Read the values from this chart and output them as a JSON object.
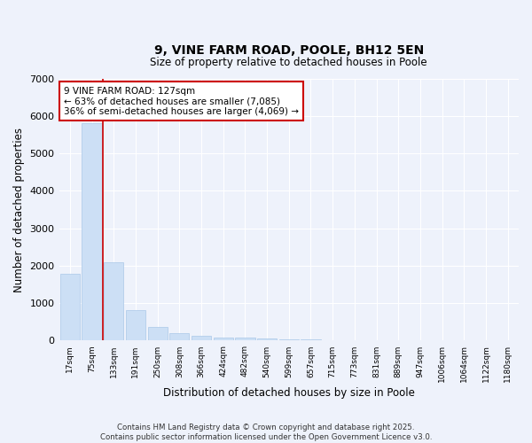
{
  "title": "9, VINE FARM ROAD, POOLE, BH12 5EN",
  "subtitle": "Size of property relative to detached houses in Poole",
  "xlabel": "Distribution of detached houses by size in Poole",
  "ylabel": "Number of detached properties",
  "bar_color": "#ccdff5",
  "bar_edge_color": "#aac8e8",
  "background_color": "#eef2fb",
  "vline_color": "#cc0000",
  "vline_x_index": 2,
  "annotation_text": "9 VINE FARM ROAD: 127sqm\n← 63% of detached houses are smaller (7,085)\n36% of semi-detached houses are larger (4,069) →",
  "annotation_box_edgecolor": "#cc0000",
  "categories": [
    "17sqm",
    "75sqm",
    "133sqm",
    "191sqm",
    "250sqm",
    "308sqm",
    "366sqm",
    "424sqm",
    "482sqm",
    "540sqm",
    "599sqm",
    "657sqm",
    "715sqm",
    "773sqm",
    "831sqm",
    "889sqm",
    "947sqm",
    "1006sqm",
    "1064sqm",
    "1122sqm",
    "1180sqm"
  ],
  "values": [
    1780,
    5820,
    2090,
    820,
    360,
    210,
    120,
    90,
    75,
    55,
    40,
    30,
    22,
    15,
    10,
    7,
    5,
    4,
    3,
    2,
    1
  ],
  "ylim": [
    0,
    7000
  ],
  "yticks": [
    0,
    1000,
    2000,
    3000,
    4000,
    5000,
    6000,
    7000
  ],
  "footer_text": "Contains HM Land Registry data © Crown copyright and database right 2025.\nContains public sector information licensed under the Open Government Licence v3.0.",
  "figsize": [
    6.0,
    5.0
  ],
  "dpi": 100
}
